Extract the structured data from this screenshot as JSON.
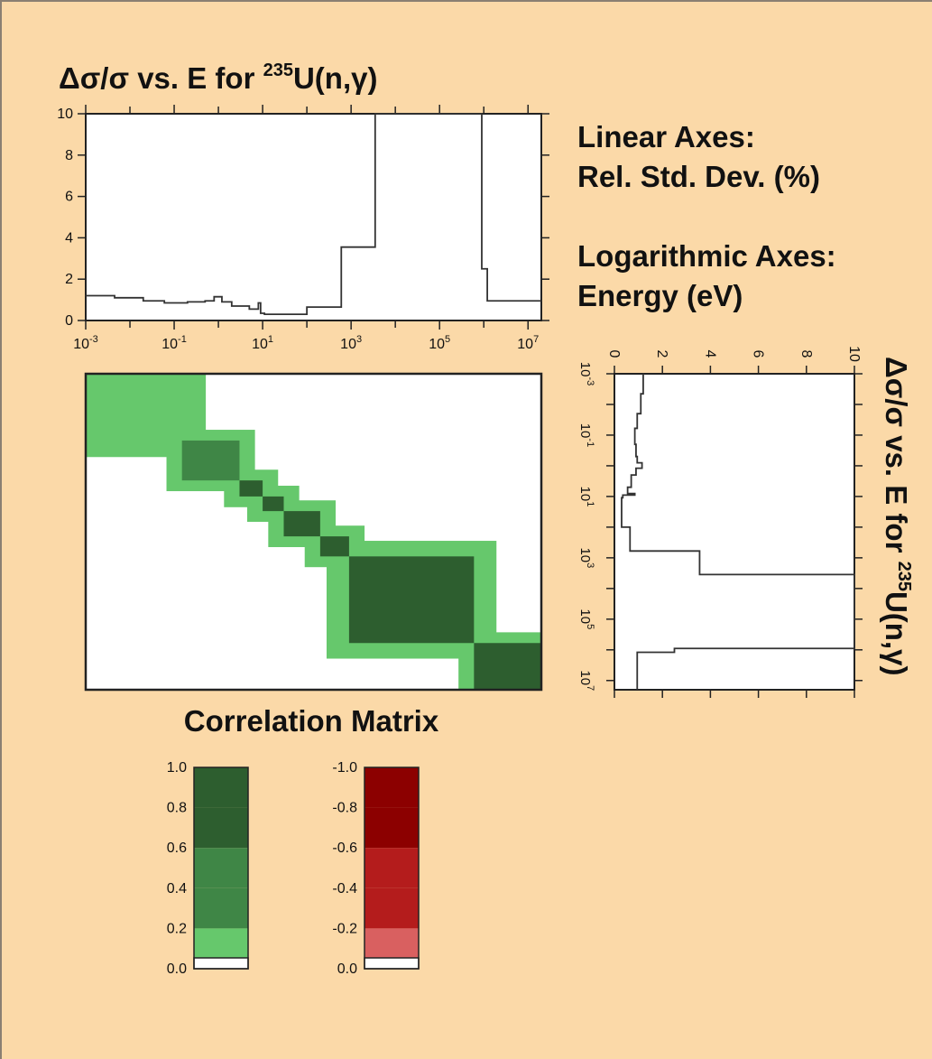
{
  "titles": {
    "top_prefix": "Δσ/σ  vs.  E  for  ",
    "iso_sup": "235",
    "reaction": "U(n,γ)",
    "correlation_label": "Correlation Matrix"
  },
  "info": {
    "linear_heading": "Linear Axes:",
    "linear_value": "Rel. Std. Dev. (%)",
    "log_heading": "Logarithmic Axes:",
    "log_value": "Energy (eV)"
  },
  "chart_data": [
    {
      "type": "line",
      "title": "Δσ/σ vs. E for 235U(n,γ)",
      "xlabel": "",
      "ylabel": "",
      "x_scale": "log",
      "xlim": [
        0.001,
        20000000
      ],
      "ylim": [
        0,
        10
      ],
      "x_tick_labels": [
        "10-3",
        "10-1",
        "101",
        "103",
        "105",
        "107"
      ],
      "y_tick_labels": [
        "0",
        "2",
        "4",
        "6",
        "8",
        "10"
      ],
      "grid": false,
      "series": [
        {
          "step": true,
          "x": [
            0.001,
            0.0045,
            0.02,
            0.06,
            0.2,
            0.5,
            0.8,
            1.2,
            2,
            5,
            8,
            9,
            11,
            20,
            100,
            600,
            3500,
            900000,
            1200000,
            20000000
          ],
          "y": [
            1.2,
            1.1,
            0.95,
            0.85,
            0.9,
            0.95,
            1.15,
            0.9,
            0.7,
            0.55,
            0.85,
            0.35,
            0.3,
            0.3,
            0.65,
            3.55,
            10,
            2.5,
            0.95,
            0.95
          ]
        }
      ]
    },
    {
      "type": "line",
      "title": "Δσ/σ vs. E for 235U(n,γ)",
      "orientation": "rotated",
      "x_scale": "log",
      "xlim": [
        0.001,
        20000000
      ],
      "ylim": [
        0,
        10
      ],
      "x_tick_labels": [
        "10-3",
        "10-1",
        "101",
        "103",
        "105",
        "107"
      ],
      "y_tick_labels": [
        "0",
        "2",
        "4",
        "6",
        "8",
        "10"
      ],
      "grid": false
    },
    {
      "type": "heatmap",
      "title": "Correlation Matrix",
      "x_scale": "log",
      "xlim": [
        0.001,
        20000000
      ],
      "ylim": [
        0.001,
        20000000
      ],
      "blocks": [
        {
          "from": 0.001,
          "to": 0.06,
          "value": 0.9
        },
        {
          "from": 0.001,
          "to": 0.2,
          "value": 0.3
        },
        {
          "from": 0.15,
          "to": 3,
          "value": 0.5
        },
        {
          "from": 3,
          "to": 10,
          "value": 0.85
        },
        {
          "from": 10,
          "to": 30,
          "value": 0.85
        },
        {
          "from": 30,
          "to": 200,
          "value": 0.85
        },
        {
          "from": 200,
          "to": 900,
          "value": 0.85
        },
        {
          "from": 900,
          "to": 600000,
          "value": 0.85
        },
        {
          "from": 600000,
          "to": 20000000,
          "value": 0.8
        }
      ]
    }
  ],
  "legend_positive": {
    "labels": [
      "1.0",
      "0.8",
      "0.6",
      "0.4",
      "0.2",
      "0.0"
    ],
    "colors": [
      "#2d5e2f",
      "#2d5e2f",
      "#3f8646",
      "#3f8646",
      "#66c86c",
      "#ffffff"
    ]
  },
  "legend_negative": {
    "labels": [
      "-1.0",
      "-0.8",
      "-0.6",
      "-0.4",
      "-0.2",
      "0.0"
    ],
    "colors": [
      "#8c0000",
      "#8c0000",
      "#b41c1c",
      "#b41c1c",
      "#d96060",
      "#ffffff"
    ]
  },
  "colors": {
    "background": "#fbd9a8",
    "dark_green": "#2d5e2f",
    "mid_green": "#3f8646",
    "light_green": "#66c86c"
  }
}
